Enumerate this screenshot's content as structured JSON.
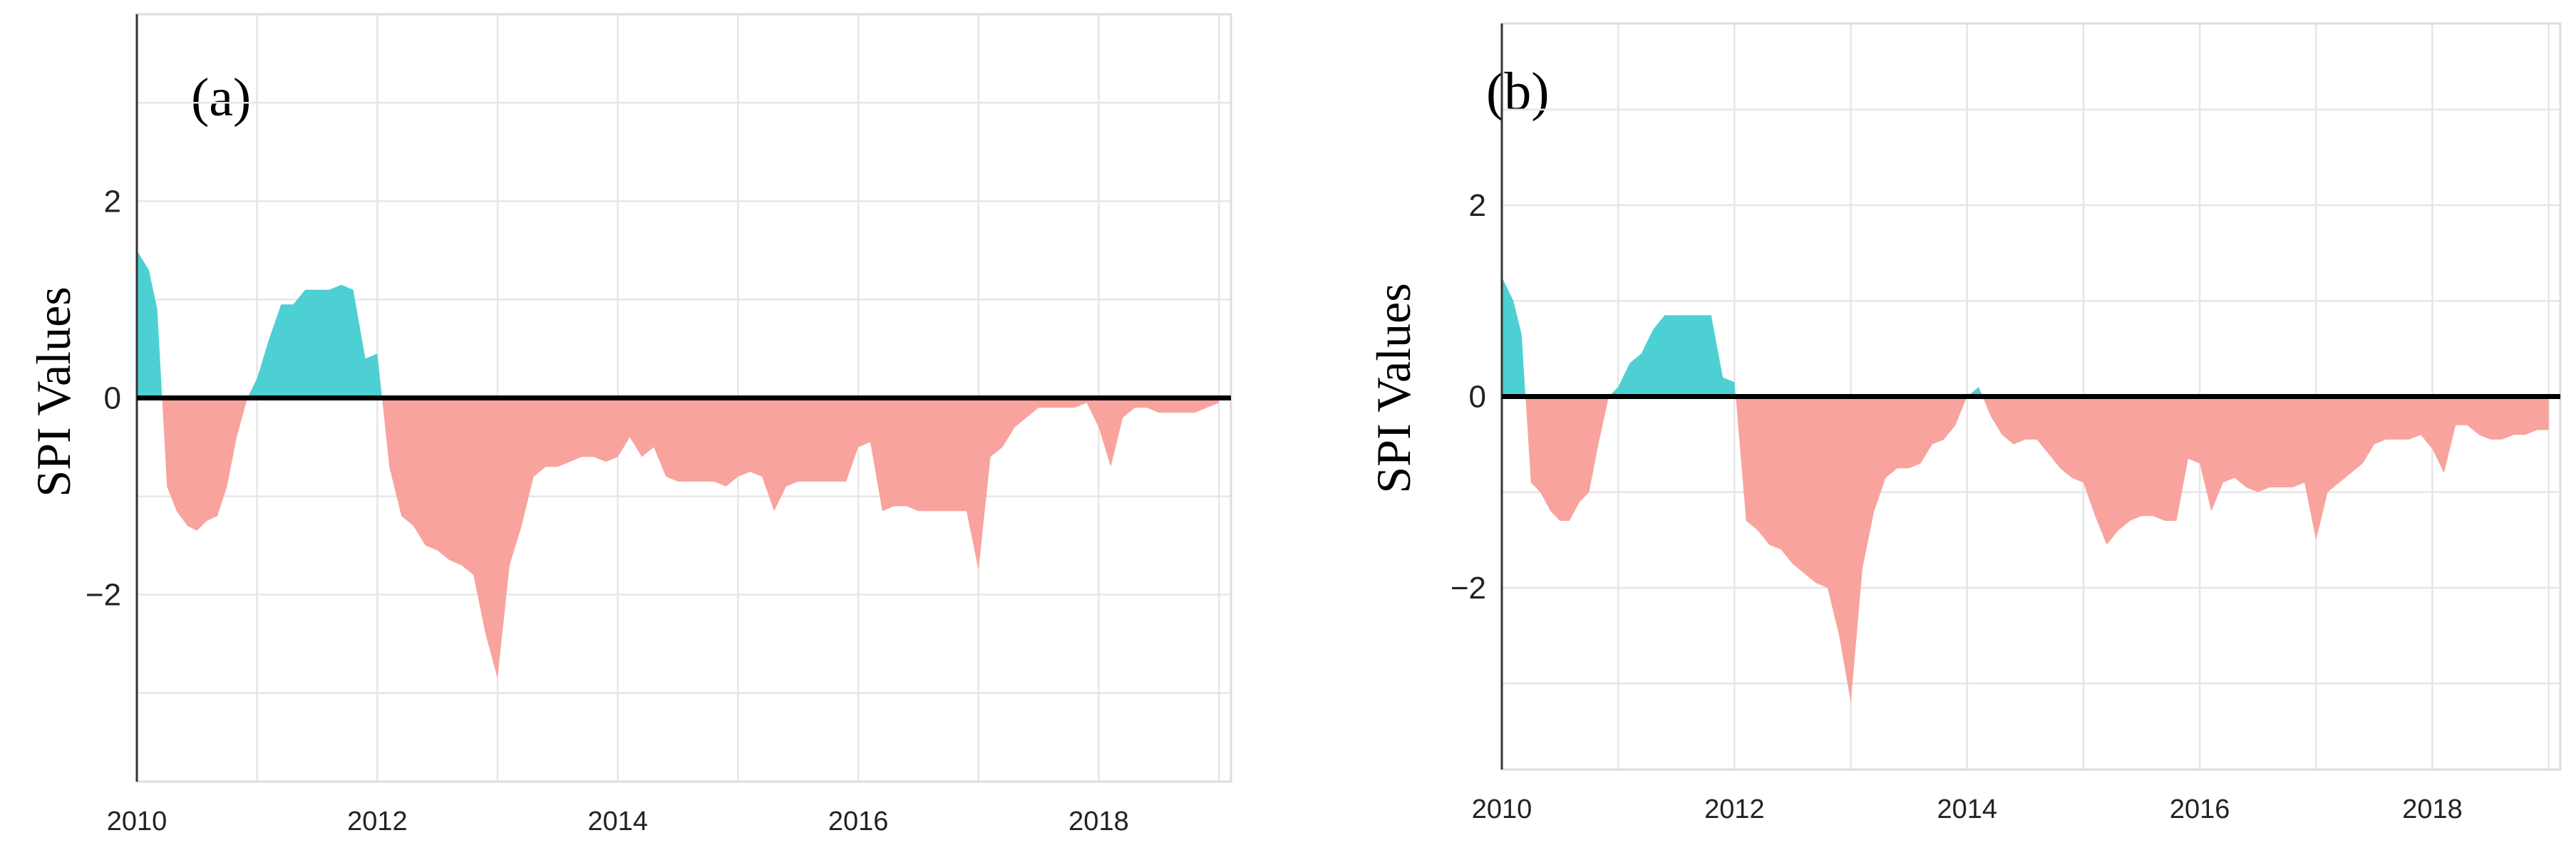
{
  "colors": {
    "positive": "#4dd0d4",
    "negative": "#f8a39d"
  },
  "chart_data": [
    {
      "type": "area",
      "panel": "(a)",
      "ylabel": "SPI Values",
      "xlabel": "",
      "xlim": [
        2010,
        2019.1
      ],
      "ylim": [
        -3.9,
        3.9
      ],
      "y_ticks": [
        -2,
        0,
        2
      ],
      "y_tick_labels": [
        "−2",
        "0",
        "2"
      ],
      "x_ticks": [
        2010,
        2012,
        2014,
        2016,
        2018
      ],
      "x_tick_labels": [
        "2010",
        "2012",
        "2014",
        "2016",
        "2018"
      ],
      "grid": true,
      "series": [
        {
          "name": "SPI",
          "x": [
            2010.0,
            2010.1,
            2010.17,
            2010.25,
            2010.33,
            2010.42,
            2010.5,
            2010.58,
            2010.67,
            2010.75,
            2010.83,
            2010.92,
            2011.0,
            2011.1,
            2011.2,
            2011.3,
            2011.4,
            2011.5,
            2011.6,
            2011.7,
            2011.8,
            2011.9,
            2012.0,
            2012.1,
            2012.2,
            2012.3,
            2012.4,
            2012.5,
            2012.6,
            2012.7,
            2012.8,
            2012.9,
            2013.0,
            2013.1,
            2013.2,
            2013.3,
            2013.4,
            2013.5,
            2013.6,
            2013.7,
            2013.8,
            2013.9,
            2014.0,
            2014.1,
            2014.2,
            2014.3,
            2014.4,
            2014.5,
            2014.6,
            2014.7,
            2014.8,
            2014.9,
            2015.0,
            2015.1,
            2015.2,
            2015.3,
            2015.4,
            2015.5,
            2015.6,
            2015.7,
            2015.8,
            2015.9,
            2016.0,
            2016.1,
            2016.2,
            2016.3,
            2016.4,
            2016.5,
            2016.6,
            2016.7,
            2016.8,
            2016.9,
            2017.0,
            2017.1,
            2017.2,
            2017.3,
            2017.4,
            2017.5,
            2017.6,
            2017.7,
            2017.8,
            2017.9,
            2018.0,
            2018.1,
            2018.2,
            2018.3,
            2018.4,
            2018.5,
            2018.6,
            2018.7,
            2018.8,
            2018.9,
            2019.0
          ],
          "values": [
            1.5,
            1.3,
            0.9,
            -0.9,
            -1.15,
            -1.3,
            -1.35,
            -1.25,
            -1.2,
            -0.9,
            -0.4,
            0.0,
            0.2,
            0.6,
            0.95,
            0.95,
            1.1,
            1.1,
            1.1,
            1.15,
            1.1,
            0.4,
            0.45,
            -0.7,
            -1.2,
            -1.3,
            -1.5,
            -1.55,
            -1.65,
            -1.7,
            -1.8,
            -2.4,
            -2.85,
            -1.7,
            -1.3,
            -0.8,
            -0.7,
            -0.7,
            -0.65,
            -0.6,
            -0.6,
            -0.65,
            -0.6,
            -0.4,
            -0.6,
            -0.5,
            -0.8,
            -0.85,
            -0.85,
            -0.85,
            -0.85,
            -0.9,
            -0.8,
            -0.75,
            -0.8,
            -1.15,
            -0.9,
            -0.85,
            -0.85,
            -0.85,
            -0.85,
            -0.85,
            -0.5,
            -0.45,
            -1.15,
            -1.1,
            -1.1,
            -1.15,
            -1.15,
            -1.15,
            -1.15,
            -1.15,
            -1.75,
            -0.6,
            -0.5,
            -0.3,
            -0.2,
            -0.1,
            -0.1,
            -0.1,
            -0.1,
            -0.05,
            -0.3,
            -0.7,
            -0.2,
            -0.1,
            -0.1,
            -0.15,
            -0.15,
            -0.15,
            -0.15,
            -0.1,
            -0.05
          ]
        }
      ]
    },
    {
      "type": "area",
      "panel": "(b)",
      "ylabel": "SPI Values",
      "xlabel": "",
      "xlim": [
        2010,
        2019.1
      ],
      "ylim": [
        -3.9,
        3.9
      ],
      "y_ticks": [
        -2,
        0,
        2
      ],
      "y_tick_labels": [
        "−2",
        "0",
        "2"
      ],
      "x_ticks": [
        2010,
        2012,
        2014,
        2016,
        2018
      ],
      "x_tick_labels": [
        "2010",
        "2012",
        "2014",
        "2016",
        "2018"
      ],
      "grid": true,
      "series": [
        {
          "name": "SPI",
          "x": [
            2010.0,
            2010.1,
            2010.17,
            2010.25,
            2010.33,
            2010.42,
            2010.5,
            2010.58,
            2010.67,
            2010.75,
            2010.83,
            2010.92,
            2011.0,
            2011.1,
            2011.2,
            2011.3,
            2011.4,
            2011.5,
            2011.6,
            2011.7,
            2011.8,
            2011.9,
            2012.0,
            2012.1,
            2012.2,
            2012.3,
            2012.4,
            2012.5,
            2012.6,
            2012.7,
            2012.8,
            2012.9,
            2013.0,
            2013.1,
            2013.2,
            2013.3,
            2013.4,
            2013.5,
            2013.6,
            2013.7,
            2013.8,
            2013.9,
            2014.0,
            2014.1,
            2014.2,
            2014.3,
            2014.4,
            2014.5,
            2014.6,
            2014.7,
            2014.8,
            2014.9,
            2015.0,
            2015.1,
            2015.2,
            2015.3,
            2015.4,
            2015.5,
            2015.6,
            2015.7,
            2015.8,
            2015.9,
            2016.0,
            2016.1,
            2016.2,
            2016.3,
            2016.4,
            2016.5,
            2016.6,
            2016.7,
            2016.8,
            2016.9,
            2017.0,
            2017.1,
            2017.2,
            2017.3,
            2017.4,
            2017.5,
            2017.6,
            2017.7,
            2017.8,
            2017.9,
            2018.0,
            2018.1,
            2018.2,
            2018.3,
            2018.4,
            2018.5,
            2018.6,
            2018.7,
            2018.8,
            2018.9,
            2019.0
          ],
          "values": [
            1.25,
            1.0,
            0.65,
            -0.9,
            -1.0,
            -1.2,
            -1.3,
            -1.3,
            -1.1,
            -1.0,
            -0.5,
            0.0,
            0.1,
            0.35,
            0.45,
            0.7,
            0.85,
            0.85,
            0.85,
            0.85,
            0.85,
            0.2,
            0.15,
            -1.3,
            -1.4,
            -1.55,
            -1.6,
            -1.75,
            -1.85,
            -1.95,
            -2.0,
            -2.5,
            -3.2,
            -1.8,
            -1.2,
            -0.85,
            -0.75,
            -0.75,
            -0.7,
            -0.5,
            -0.45,
            -0.3,
            0.0,
            0.1,
            -0.2,
            -0.4,
            -0.5,
            -0.45,
            -0.45,
            -0.6,
            -0.75,
            -0.85,
            -0.9,
            -1.25,
            -1.55,
            -1.4,
            -1.3,
            -1.25,
            -1.25,
            -1.3,
            -1.3,
            -0.65,
            -0.7,
            -1.2,
            -0.9,
            -0.85,
            -0.95,
            -1.0,
            -0.95,
            -0.95,
            -0.95,
            -0.9,
            -1.5,
            -1.0,
            -0.9,
            -0.8,
            -0.7,
            -0.5,
            -0.45,
            -0.45,
            -0.45,
            -0.4,
            -0.55,
            -0.8,
            -0.3,
            -0.3,
            -0.4,
            -0.45,
            -0.45,
            -0.4,
            -0.4,
            -0.35,
            -0.35
          ]
        }
      ]
    }
  ]
}
